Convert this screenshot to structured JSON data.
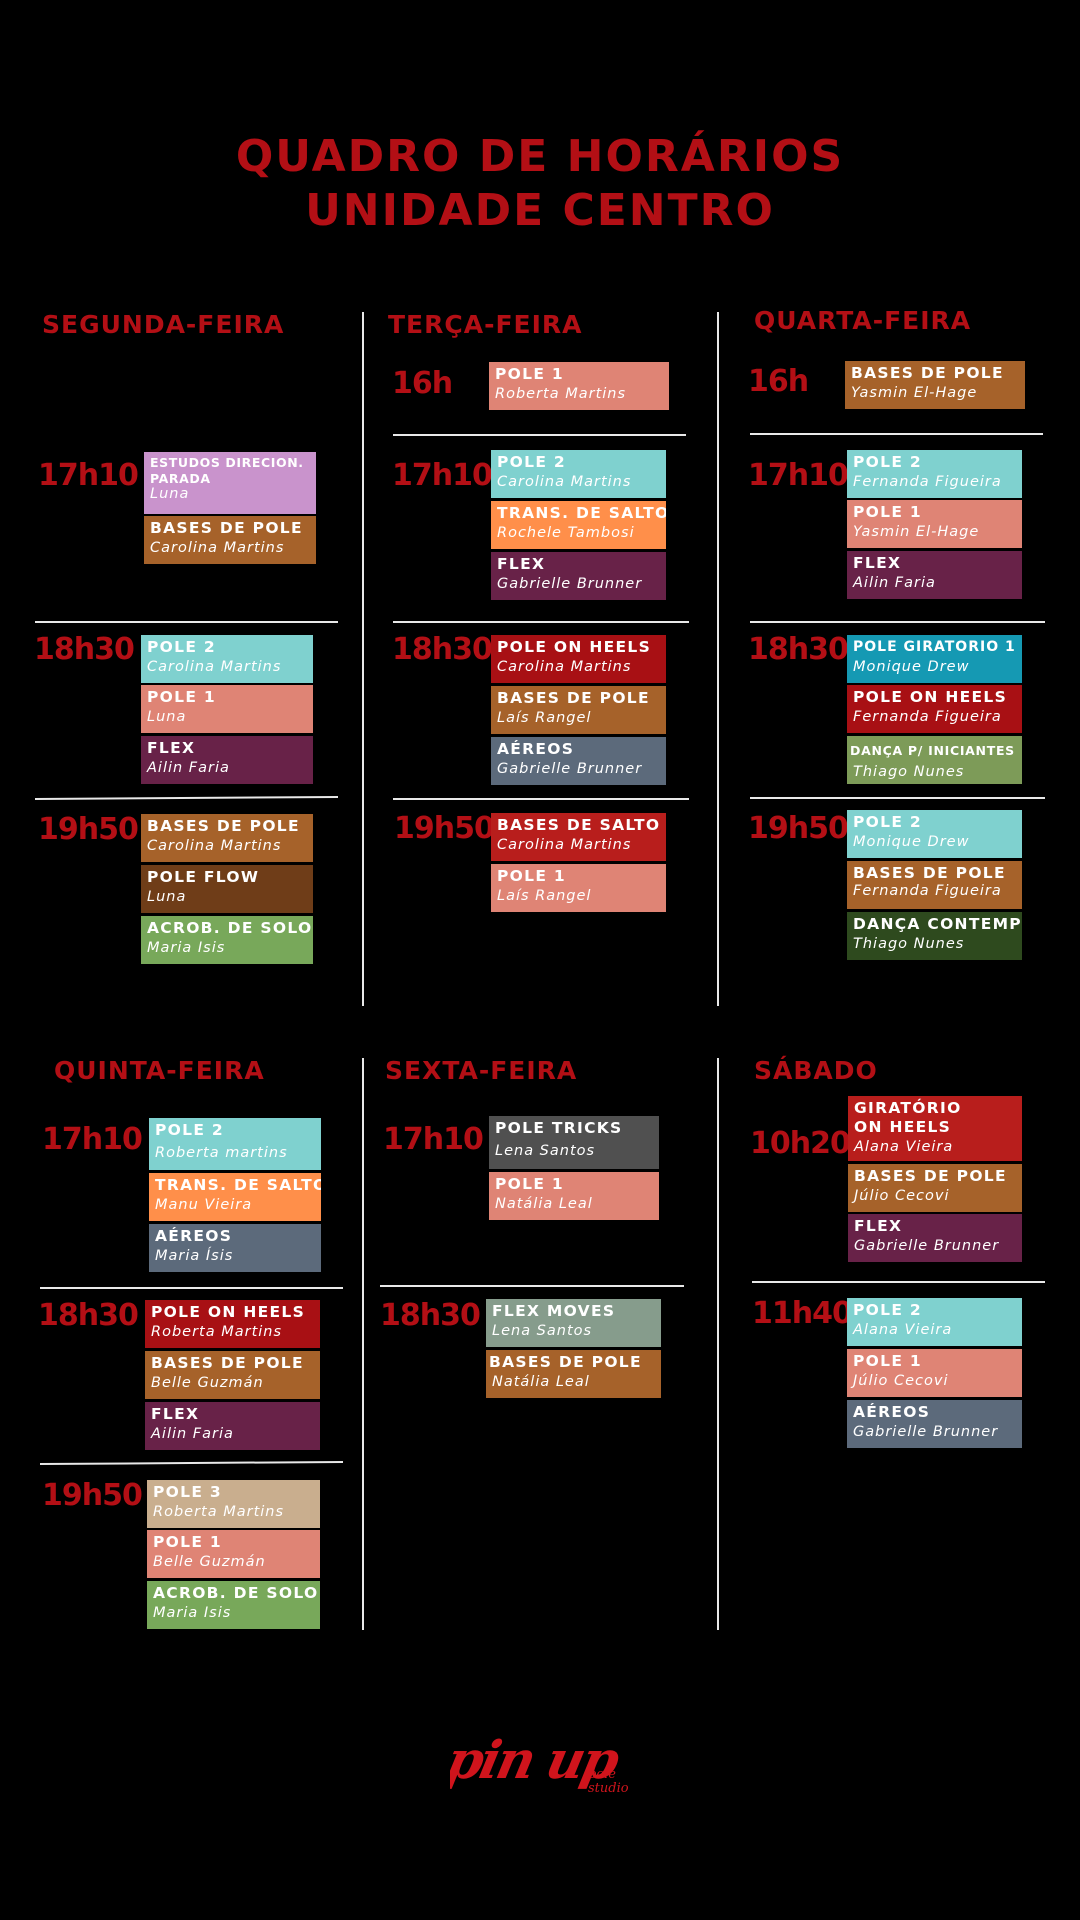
{
  "header": {
    "line1": "QUADRO DE HORÁRIOS",
    "line2": "UNIDADE CENTRO"
  },
  "colors": {
    "accent": "#b30f15",
    "teal": "#7fd1cf",
    "salmon": "#df8475",
    "lilac": "#c993cc",
    "brown": "#a6622a",
    "plum": "#682248",
    "orange": "#ff8f4a",
    "red": "#a81014",
    "slate": "#5c6a7b",
    "darkbrown": "#6f3d18",
    "green": "#78a85a",
    "blue": "#1599b3",
    "sage": "#7d9b58",
    "darkgreen": "#2e4a1e",
    "gray": "#505050",
    "grayteal": "#869c8c",
    "tan": "#c9ae8e",
    "crimson": "#b81e1c"
  },
  "days": {
    "seg": "SEGUNDA-FEIRA",
    "ter": "TERÇA-FEIRA",
    "qua": "QUARTA-FEIRA",
    "qui": "QUINTA-FEIRA",
    "sex": "SEXTA-FEIRA",
    "sab": "SÁBADO"
  },
  "times": {
    "seg": [
      "17h10",
      "18h30",
      "19h50"
    ],
    "ter": [
      "16h",
      "17h10",
      "18h30",
      "19h50"
    ],
    "qua": [
      "16h",
      "17h10",
      "18h30",
      "19h50"
    ],
    "qui": [
      "17h10",
      "18h30",
      "19h50"
    ],
    "sex": [
      "17h10",
      "18h30"
    ],
    "sab": [
      "10h20",
      "11h40"
    ]
  },
  "classes": {
    "seg": [
      {
        "name": "ESTUDOS DIRECION. PARADA",
        "teacher": "Luna"
      },
      {
        "name": "BASES DE POLE",
        "teacher": "Carolina Martins"
      },
      {
        "name": "POLE 2",
        "teacher": "Carolina Martins"
      },
      {
        "name": "POLE 1",
        "teacher": "Luna"
      },
      {
        "name": "FLEX",
        "teacher": "Ailin Faria"
      },
      {
        "name": "BASES DE POLE",
        "teacher": "Carolina Martins"
      },
      {
        "name": "POLE FLOW",
        "teacher": "Luna"
      },
      {
        "name": "ACROB. DE SOLO",
        "teacher": "Maria Isis"
      }
    ],
    "ter": [
      {
        "name": "POLE 1",
        "teacher": "Roberta Martins"
      },
      {
        "name": "POLE 2",
        "teacher": "Carolina Martins"
      },
      {
        "name": "TRANS. DE SALTO",
        "teacher": "Rochele Tambosi"
      },
      {
        "name": "FLEX",
        "teacher": "Gabrielle Brunner"
      },
      {
        "name": "POLE ON HEELS",
        "teacher": "Carolina Martins"
      },
      {
        "name": "BASES DE POLE",
        "teacher": "Laís Rangel"
      },
      {
        "name": "AÉREOS",
        "teacher": "Gabrielle Brunner"
      },
      {
        "name": "BASES DE SALTO",
        "teacher": "Carolina Martins"
      },
      {
        "name": "POLE 1",
        "teacher": "Laís Rangel"
      }
    ],
    "qua": [
      {
        "name": "BASES DE POLE",
        "teacher": "Yasmin El-Hage"
      },
      {
        "name": "POLE 2",
        "teacher": "Fernanda Figueira"
      },
      {
        "name": "POLE 1",
        "teacher": "Yasmin El-Hage"
      },
      {
        "name": "FLEX",
        "teacher": "Ailin Faria"
      },
      {
        "name": "POLE GIRATORIO 1",
        "teacher": "Monique Drew"
      },
      {
        "name": "POLE ON HEELS",
        "teacher": "Fernanda Figueira"
      },
      {
        "name": "DANÇA P/ INICIANTES",
        "teacher": "Thiago Nunes"
      },
      {
        "name": "POLE 2",
        "teacher": "Monique Drew"
      },
      {
        "name": "BASES DE POLE",
        "teacher": "Fernanda Figueira"
      },
      {
        "name": "DANÇA CONTEMP",
        "teacher": "Thiago Nunes"
      }
    ],
    "qui": [
      {
        "name": "POLE 2",
        "teacher": "Roberta martins"
      },
      {
        "name": "TRANS. DE SALTO",
        "teacher": "Manu Vieira"
      },
      {
        "name": "AÉREOS",
        "teacher": "Maria Ísis"
      },
      {
        "name": "POLE ON HEELS",
        "teacher": "Roberta Martins"
      },
      {
        "name": "BASES DE POLE",
        "teacher": "Belle Guzmán"
      },
      {
        "name": "FLEX",
        "teacher": "Ailin Faria"
      },
      {
        "name": "POLE 3",
        "teacher": "Roberta Martins"
      },
      {
        "name": "POLE 1",
        "teacher": "Belle Guzmán"
      },
      {
        "name": "ACROB. DE SOLO",
        "teacher": "Maria Isis"
      }
    ],
    "sex": [
      {
        "name": "POLE TRICKS",
        "teacher": "Lena Santos"
      },
      {
        "name": "POLE 1",
        "teacher": "Natália Leal"
      },
      {
        "name": "FLEX MOVES",
        "teacher": "Lena Santos"
      },
      {
        "name": "BASES DE POLE",
        "teacher": "Natália Leal"
      }
    ],
    "sab": [
      {
        "name": "GIRATÓRIO ON HEELS",
        "teacher": "Alana Vieira"
      },
      {
        "name": "BASES DE POLE",
        "teacher": "Júlio Cecovi"
      },
      {
        "name": "FLEX",
        "teacher": "Gabrielle Brunner"
      },
      {
        "name": "POLE 2",
        "teacher": "Alana Vieira"
      },
      {
        "name": "POLE 1",
        "teacher": "Júlio Cecovi"
      },
      {
        "name": "AÉREOS",
        "teacher": "Gabrielle Brunner"
      }
    ]
  },
  "logo": {
    "brand": "pin up",
    "sub1": "pole",
    "sub2": "studio"
  }
}
